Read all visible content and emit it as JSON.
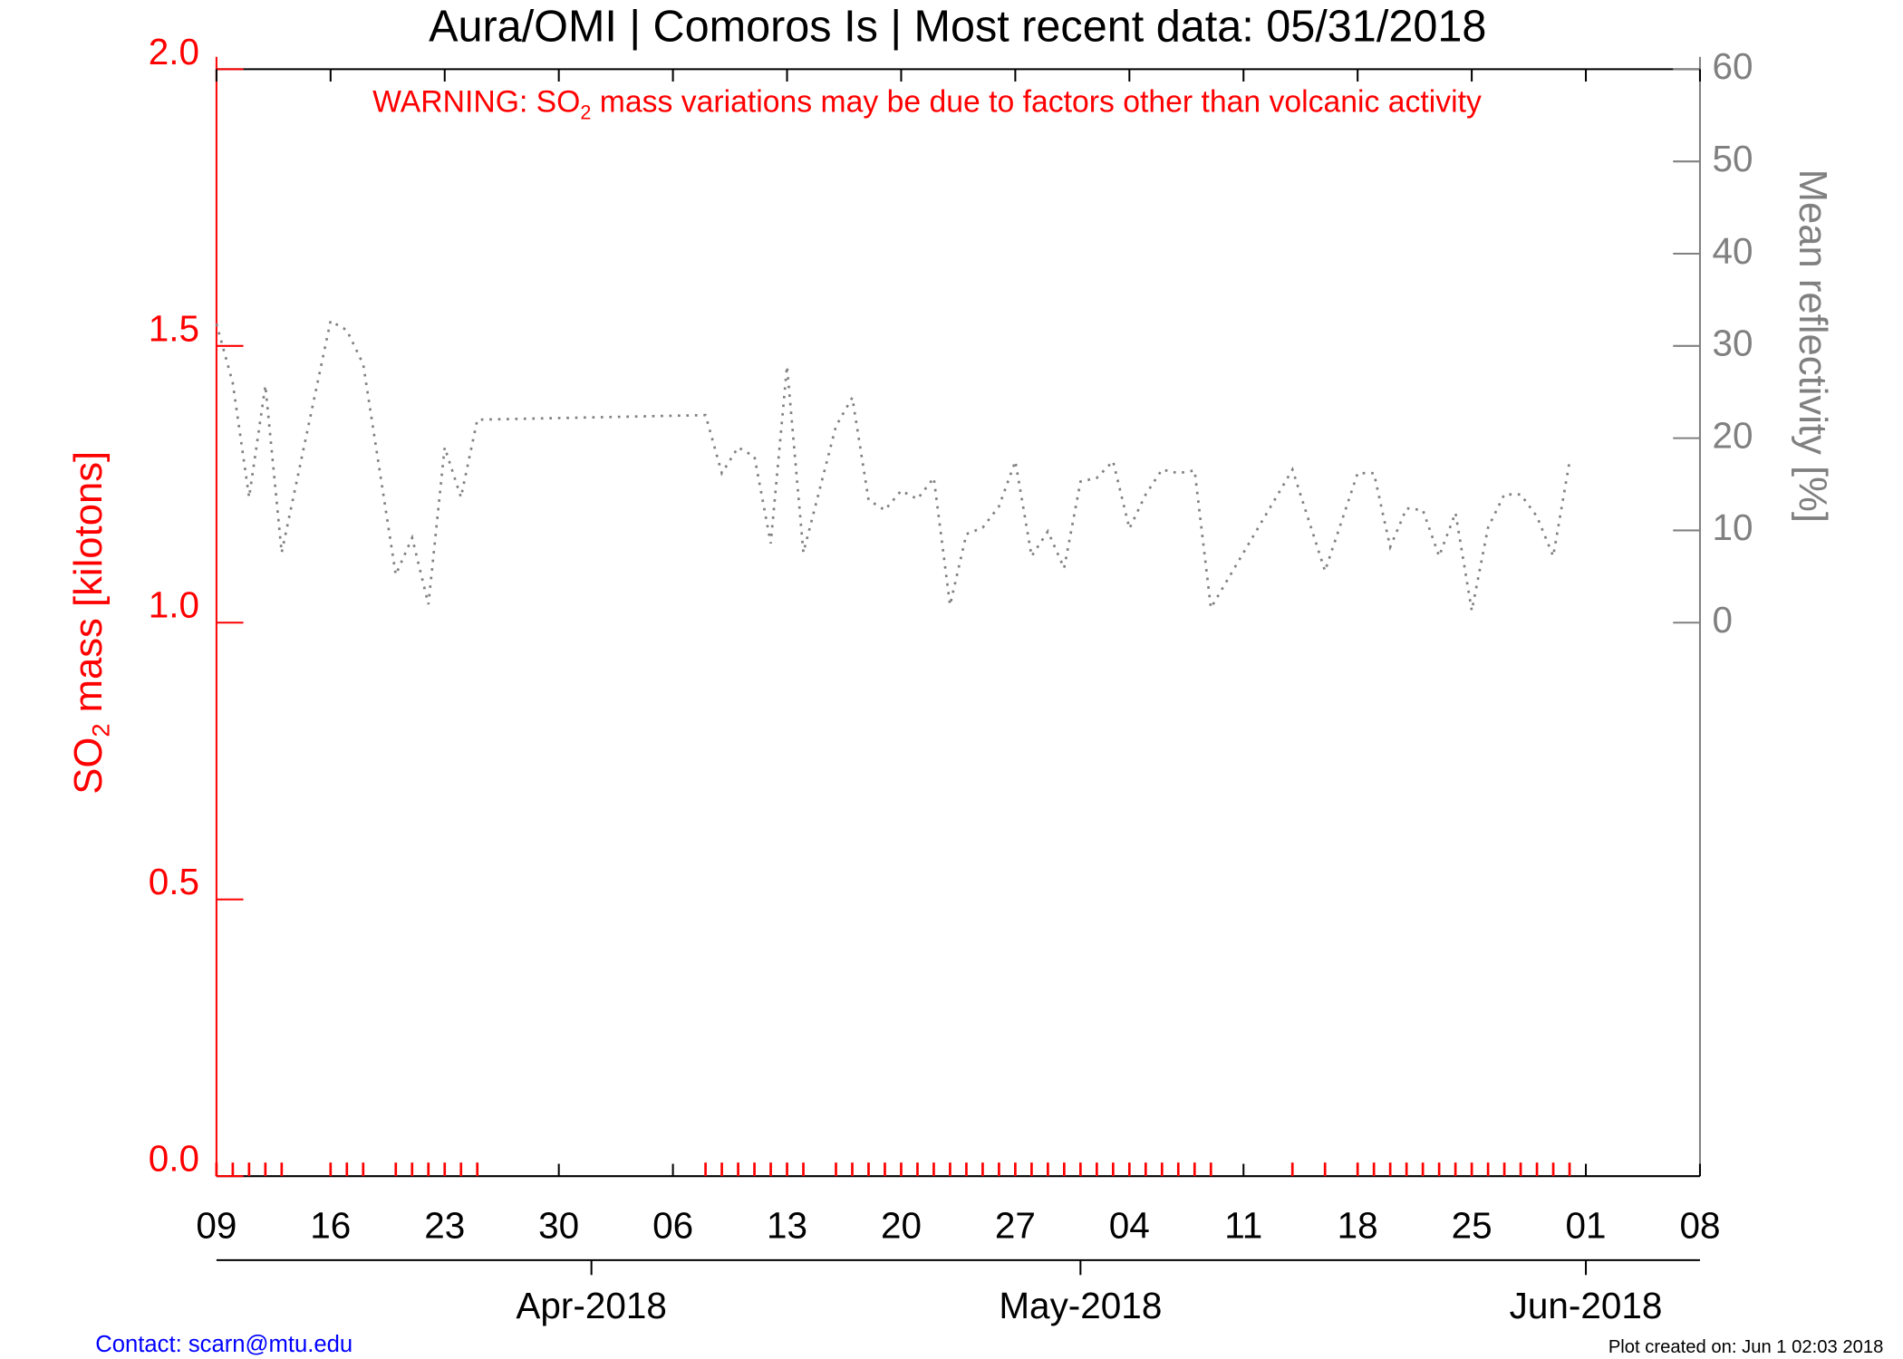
{
  "chart_data": {
    "type": "line",
    "title": "Aura/OMI | Comoros Is | Most recent data: 05/31/2018",
    "warning": {
      "before": "WARNING: SO",
      "sub": "2",
      "after": " mass variations may be due to factors other than volcanic activity"
    },
    "y_label": {
      "before": "SO",
      "sub": "2",
      "after": " mass [kilotons]"
    },
    "y2_label": "Mean reflectivity [%]",
    "contact": "Contact: scarn@mtu.edu",
    "created": "Plot created on: Jun  1 02:03 2018",
    "xlim": [
      "2018-03-09",
      "2018-06-08"
    ],
    "xticks": [
      {
        "value": "2018-03-09",
        "label": "09"
      },
      {
        "value": "2018-03-16",
        "label": "16"
      },
      {
        "value": "2018-03-23",
        "label": "23"
      },
      {
        "value": "2018-03-30",
        "label": "30"
      },
      {
        "value": "2018-04-06",
        "label": "06"
      },
      {
        "value": "2018-04-13",
        "label": "13"
      },
      {
        "value": "2018-04-20",
        "label": "20"
      },
      {
        "value": "2018-04-27",
        "label": "27"
      },
      {
        "value": "2018-05-04",
        "label": "04"
      },
      {
        "value": "2018-05-11",
        "label": "11"
      },
      {
        "value": "2018-05-18",
        "label": "18"
      },
      {
        "value": "2018-05-25",
        "label": "25"
      },
      {
        "value": "2018-06-01",
        "label": "01"
      },
      {
        "value": "2018-06-08",
        "label": "08"
      }
    ],
    "month_ticks": [
      {
        "value": "2018-04-01",
        "label": "Apr-2018"
      },
      {
        "value": "2018-05-01",
        "label": "May-2018"
      },
      {
        "value": "2018-06-01",
        "label": "Jun-2018"
      }
    ],
    "ylim": [
      0,
      2
    ],
    "yticks": [
      {
        "value": 0,
        "label": "0.0"
      },
      0.5,
      {
        "value": 1,
        "label": "1.0"
      },
      1.5,
      {
        "value": 2,
        "label": "2.0"
      }
    ],
    "y2lim": [
      -60,
      60
    ],
    "y2ticks": [
      0,
      10,
      20,
      30,
      40,
      50,
      60
    ],
    "x": [
      "2018-03-09",
      "2018-03-10",
      "2018-03-11",
      "2018-03-12",
      "2018-03-13",
      "2018-03-16",
      "2018-03-17",
      "2018-03-18",
      "2018-03-20",
      "2018-03-21",
      "2018-03-22",
      "2018-03-23",
      "2018-03-24",
      "2018-03-25",
      "2018-04-08",
      "2018-04-09",
      "2018-04-10",
      "2018-04-11",
      "2018-04-12",
      "2018-04-13",
      "2018-04-14",
      "2018-04-16",
      "2018-04-17",
      "2018-04-18",
      "2018-04-19",
      "2018-04-20",
      "2018-04-21",
      "2018-04-22",
      "2018-04-23",
      "2018-04-24",
      "2018-04-25",
      "2018-04-26",
      "2018-04-27",
      "2018-04-28",
      "2018-04-29",
      "2018-04-30",
      "2018-05-01",
      "2018-05-02",
      "2018-05-03",
      "2018-05-04",
      "2018-05-05",
      "2018-05-06",
      "2018-05-07",
      "2018-05-08",
      "2018-05-09",
      "2018-05-14",
      "2018-05-16",
      "2018-05-18",
      "2018-05-19",
      "2018-05-20",
      "2018-05-21",
      "2018-05-22",
      "2018-05-23",
      "2018-05-24",
      "2018-05-25",
      "2018-05-26",
      "2018-05-27",
      "2018-05-28",
      "2018-05-29",
      "2018-05-30",
      "2018-05-31"
    ],
    "series": [
      {
        "name": "SO2 mass",
        "color": "#ff0000",
        "values": [
          0,
          0,
          0,
          0,
          0,
          0,
          0,
          0,
          0,
          0,
          0,
          0,
          0,
          0,
          0,
          0,
          0,
          0,
          0,
          0,
          0,
          0,
          0,
          0,
          0,
          0,
          0,
          0,
          0,
          0,
          0,
          0,
          0,
          0,
          0,
          0,
          0,
          0,
          0,
          0,
          0,
          0,
          0,
          0,
          0,
          0,
          0,
          0,
          0,
          0,
          0,
          0,
          0,
          0,
          0,
          0,
          0,
          0,
          0,
          0,
          0
        ]
      },
      {
        "name": "Mean reflectivity",
        "color": "#808080",
        "axis": "y2",
        "values": [
          32.4,
          26,
          13.6,
          25.7,
          7.6,
          32.7,
          31.7,
          28,
          5.2,
          9.2,
          2,
          19,
          13.6,
          22,
          22.5,
          16.2,
          19,
          18,
          8.6,
          27.8,
          7.6,
          21.3,
          24.4,
          13.3,
          12.2,
          14.3,
          13.4,
          15.7,
          1.9,
          9.6,
          10.3,
          12.6,
          17.5,
          7.2,
          9.9,
          5.9,
          15.3,
          15.7,
          17.5,
          10.2,
          13.9,
          16.6,
          16.2,
          16.5,
          1.6,
          16.6,
          5.6,
          16.2,
          16.2,
          8.2,
          12.4,
          12.2,
          7.2,
          11.9,
          1.3,
          10.3,
          13.9,
          13.9,
          11.5,
          7.2,
          17.5
        ]
      }
    ]
  }
}
